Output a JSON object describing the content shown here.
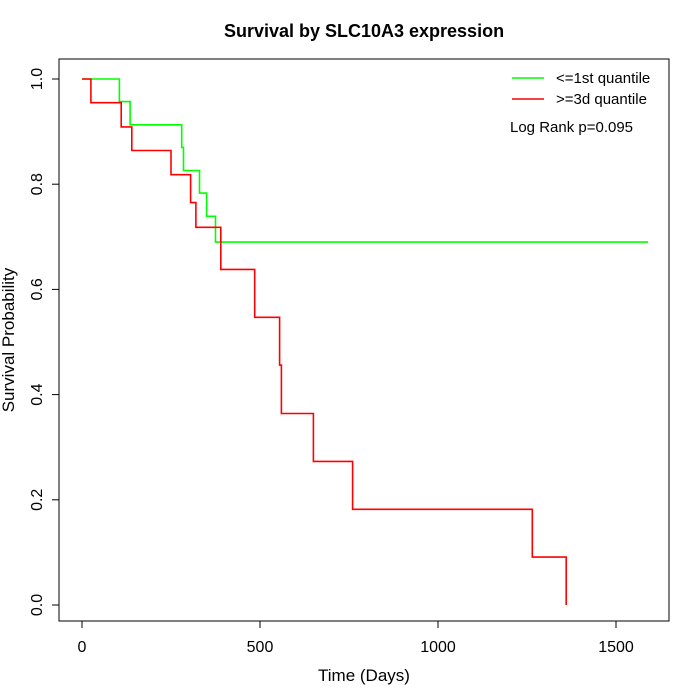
{
  "chart_data": {
    "type": "line",
    "title": "Survival by SLC10A3 expression",
    "xlabel": "Time (Days)",
    "ylabel": "Survival Probability",
    "xlim": [
      0,
      1600
    ],
    "ylim": [
      0,
      1.0
    ],
    "x_ticks": [
      "0",
      "500",
      "1000",
      "1500"
    ],
    "x_tick_values": [
      0,
      500,
      1000,
      1500
    ],
    "y_ticks": [
      "0.0",
      "0.2",
      "0.4",
      "0.6",
      "0.8",
      "1.0"
    ],
    "y_tick_values": [
      0,
      0.2,
      0.4,
      0.6,
      0.8,
      1.0
    ],
    "grid": false,
    "legend_position": "top-right",
    "annotation": "Log Rank p=0.095",
    "series": [
      {
        "name": "<=1st quantile",
        "color": "#00ff00",
        "step": true,
        "points": [
          [
            0,
            1.0
          ],
          [
            105,
            1.0
          ],
          [
            105,
            0.957
          ],
          [
            135,
            0.957
          ],
          [
            135,
            0.913
          ],
          [
            280,
            0.913
          ],
          [
            280,
            0.87
          ],
          [
            285,
            0.87
          ],
          [
            285,
            0.826
          ],
          [
            330,
            0.826
          ],
          [
            330,
            0.783
          ],
          [
            350,
            0.783
          ],
          [
            350,
            0.739
          ],
          [
            375,
            0.739
          ],
          [
            375,
            0.69
          ],
          [
            1590,
            0.69
          ]
        ]
      },
      {
        "name": ">=3d quantile",
        "color": "#ff0000",
        "step": true,
        "points": [
          [
            0,
            1.0
          ],
          [
            25,
            1.0
          ],
          [
            25,
            0.955
          ],
          [
            110,
            0.955
          ],
          [
            110,
            0.909
          ],
          [
            140,
            0.909
          ],
          [
            140,
            0.864
          ],
          [
            250,
            0.864
          ],
          [
            250,
            0.818
          ],
          [
            305,
            0.818
          ],
          [
            305,
            0.765
          ],
          [
            320,
            0.765
          ],
          [
            320,
            0.718
          ],
          [
            390,
            0.718
          ],
          [
            390,
            0.638
          ],
          [
            485,
            0.638
          ],
          [
            485,
            0.547
          ],
          [
            555,
            0.547
          ],
          [
            555,
            0.456
          ],
          [
            560,
            0.456
          ],
          [
            560,
            0.364
          ],
          [
            650,
            0.364
          ],
          [
            650,
            0.273
          ],
          [
            760,
            0.273
          ],
          [
            760,
            0.182
          ],
          [
            1265,
            0.182
          ],
          [
            1265,
            0.091
          ],
          [
            1360,
            0.091
          ],
          [
            1360,
            0.0
          ]
        ]
      }
    ]
  }
}
